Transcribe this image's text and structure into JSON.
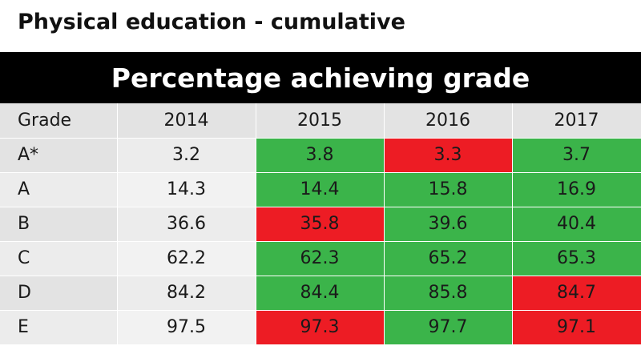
{
  "title": "Physical education - cumulative",
  "table_title": "Percentage achieving grade",
  "colors": {
    "increase": "#3bb44a",
    "decrease": "#ed1c24",
    "header": "#000000"
  },
  "chart_data": {
    "type": "table",
    "columns": [
      "Grade",
      "2014",
      "2015",
      "2016",
      "2017"
    ],
    "rows": [
      {
        "grade": "A*",
        "values": [
          "3.2",
          "3.8",
          "3.3",
          "3.7"
        ],
        "status": [
          "none",
          "up",
          "down",
          "up"
        ]
      },
      {
        "grade": "A",
        "values": [
          "14.3",
          "14.4",
          "15.8",
          "16.9"
        ],
        "status": [
          "none",
          "up",
          "up",
          "up"
        ]
      },
      {
        "grade": "B",
        "values": [
          "36.6",
          "35.8",
          "39.6",
          "40.4"
        ],
        "status": [
          "none",
          "down",
          "up",
          "up"
        ]
      },
      {
        "grade": "C",
        "values": [
          "62.2",
          "62.3",
          "65.2",
          "65.3"
        ],
        "status": [
          "none",
          "up",
          "up",
          "up"
        ]
      },
      {
        "grade": "D",
        "values": [
          "84.2",
          "84.4",
          "85.8",
          "84.7"
        ],
        "status": [
          "none",
          "up",
          "up",
          "down"
        ]
      },
      {
        "grade": "E",
        "values": [
          "97.5",
          "97.3",
          "97.7",
          "97.1"
        ],
        "status": [
          "none",
          "down",
          "up",
          "down"
        ]
      }
    ]
  }
}
